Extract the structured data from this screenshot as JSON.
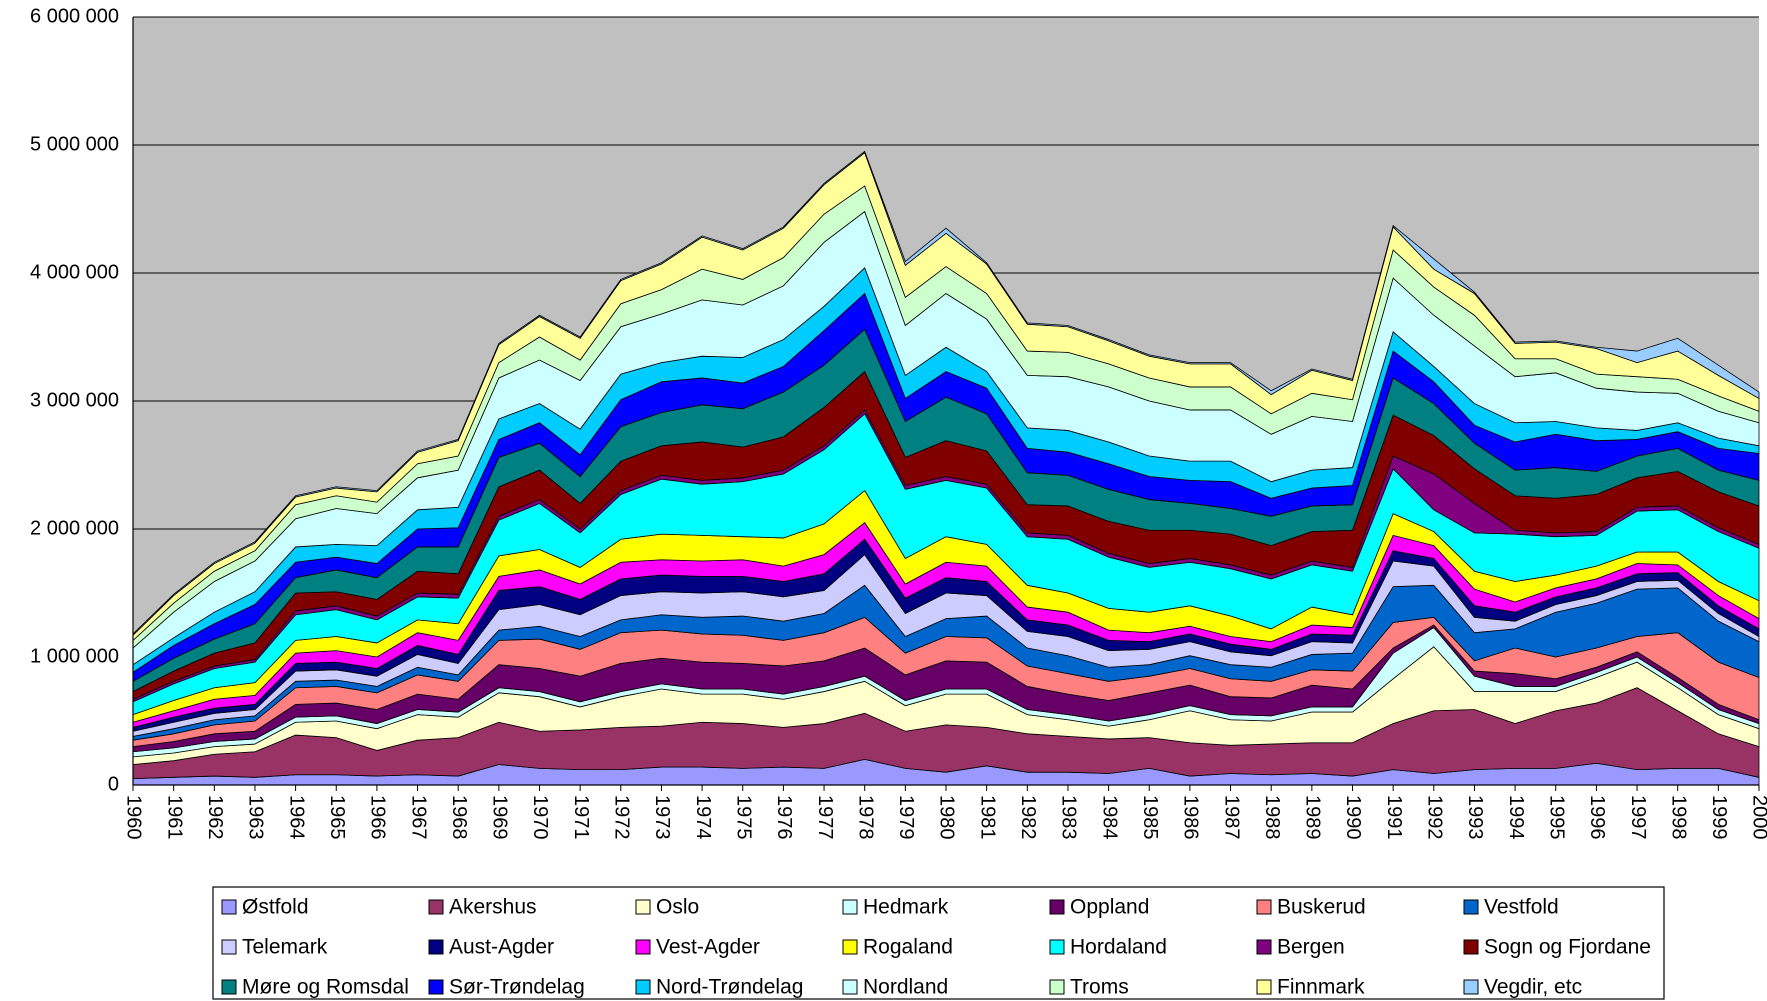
{
  "chart_data": {
    "type": "stacked-area",
    "categories": [
      1960,
      1961,
      1962,
      1963,
      1964,
      1965,
      1966,
      1967,
      1968,
      1969,
      1970,
      1971,
      1972,
      1973,
      1974,
      1975,
      1976,
      1977,
      1978,
      1979,
      1980,
      1981,
      1982,
      1983,
      1984,
      1985,
      1986,
      1987,
      1988,
      1989,
      1990,
      1991,
      1992,
      1993,
      1994,
      1995,
      1996,
      1997,
      1998,
      1999,
      2000
    ],
    "ylim": [
      0,
      6000000
    ],
    "yticks": [
      0,
      {
        "value": 1000000,
        "label": "1 000 000"
      },
      {
        "value": 2000000,
        "label": "2 000 000"
      },
      {
        "value": 3000000,
        "label": "3 000 000"
      },
      {
        "value": 4000000,
        "label": "4 000 000"
      },
      {
        "value": 5000000,
        "label": "5 000 000"
      },
      {
        "value": 6000000,
        "label": "6 000 000"
      }
    ],
    "grid": true,
    "legend": "bottom",
    "series": [
      {
        "name": "Østfold",
        "color": "#9999FF",
        "values": [
          50000,
          60000,
          70000,
          60000,
          80000,
          80000,
          70000,
          80000,
          70000,
          160000,
          130000,
          120000,
          120000,
          140000,
          140000,
          130000,
          140000,
          130000,
          200000,
          130000,
          100000,
          150000,
          100000,
          100000,
          90000,
          130000,
          70000,
          90000,
          80000,
          90000,
          70000,
          120000,
          90000,
          120000,
          130000,
          130000,
          170000,
          120000,
          130000,
          130000,
          60000
        ]
      },
      {
        "name": "Akershus",
        "color": "#993366",
        "values": [
          110000,
          130000,
          170000,
          200000,
          310000,
          290000,
          200000,
          270000,
          300000,
          330000,
          290000,
          310000,
          330000,
          320000,
          350000,
          350000,
          310000,
          350000,
          360000,
          290000,
          370000,
          300000,
          300000,
          280000,
          270000,
          240000,
          260000,
          220000,
          240000,
          240000,
          260000,
          360000,
          490000,
          470000,
          350000,
          450000,
          470000,
          640000,
          450000,
          270000,
          240000
        ]
      },
      {
        "name": "Oslo",
        "color": "#FFFFCC",
        "values": [
          60000,
          60000,
          60000,
          60000,
          100000,
          130000,
          170000,
          200000,
          160000,
          230000,
          270000,
          180000,
          240000,
          290000,
          220000,
          230000,
          220000,
          250000,
          250000,
          200000,
          240000,
          260000,
          150000,
          130000,
          100000,
          140000,
          250000,
          200000,
          180000,
          240000,
          240000,
          350000,
          500000,
          140000,
          250000,
          150000,
          200000,
          200000,
          180000,
          150000,
          140000
        ]
      },
      {
        "name": "Hedmark",
        "color": "#CCFFFF",
        "values": [
          40000,
          40000,
          40000,
          40000,
          40000,
          40000,
          40000,
          40000,
          40000,
          40000,
          40000,
          40000,
          40000,
          40000,
          40000,
          40000,
          40000,
          40000,
          40000,
          40000,
          40000,
          40000,
          40000,
          40000,
          40000,
          40000,
          40000,
          40000,
          40000,
          40000,
          40000,
          200000,
          150000,
          120000,
          40000,
          40000,
          40000,
          40000,
          40000,
          40000,
          40000
        ]
      },
      {
        "name": "Oppland",
        "color": "#660066",
        "values": [
          40000,
          50000,
          60000,
          60000,
          100000,
          100000,
          110000,
          120000,
          100000,
          180000,
          180000,
          200000,
          220000,
          200000,
          210000,
          200000,
          220000,
          200000,
          220000,
          200000,
          220000,
          210000,
          180000,
          160000,
          160000,
          170000,
          160000,
          140000,
          140000,
          170000,
          140000,
          40000,
          20000,
          40000,
          100000,
          60000,
          40000,
          40000,
          40000,
          40000,
          30000
        ]
      },
      {
        "name": "Buskerud",
        "color": "#FF8080",
        "values": [
          50000,
          60000,
          70000,
          80000,
          130000,
          130000,
          130000,
          150000,
          140000,
          190000,
          230000,
          210000,
          240000,
          220000,
          220000,
          220000,
          200000,
          220000,
          240000,
          170000,
          190000,
          190000,
          160000,
          160000,
          150000,
          130000,
          130000,
          140000,
          130000,
          120000,
          140000,
          200000,
          60000,
          80000,
          200000,
          170000,
          150000,
          120000,
          350000,
          330000,
          330000
        ]
      },
      {
        "name": "Vestfold",
        "color": "#0066CC",
        "values": [
          30000,
          40000,
          40000,
          40000,
          50000,
          50000,
          50000,
          60000,
          50000,
          80000,
          100000,
          100000,
          100000,
          120000,
          130000,
          150000,
          150000,
          150000,
          250000,
          130000,
          140000,
          170000,
          140000,
          140000,
          110000,
          90000,
          100000,
          110000,
          110000,
          120000,
          140000,
          280000,
          250000,
          220000,
          150000,
          350000,
          350000,
          370000,
          350000,
          320000,
          280000
        ]
      },
      {
        "name": "Telemark",
        "color": "#CCCCFF",
        "values": [
          40000,
          50000,
          50000,
          50000,
          80000,
          80000,
          80000,
          100000,
          90000,
          160000,
          170000,
          170000,
          190000,
          180000,
          190000,
          190000,
          190000,
          180000,
          240000,
          180000,
          200000,
          160000,
          130000,
          150000,
          130000,
          120000,
          110000,
          100000,
          90000,
          100000,
          80000,
          200000,
          150000,
          120000,
          60000,
          60000,
          60000,
          60000,
          60000,
          60000,
          40000
        ]
      },
      {
        "name": "Aust-Agder",
        "color": "#000080",
        "values": [
          30000,
          40000,
          40000,
          40000,
          60000,
          60000,
          60000,
          70000,
          70000,
          150000,
          140000,
          120000,
          130000,
          130000,
          130000,
          120000,
          120000,
          130000,
          120000,
          120000,
          120000,
          110000,
          90000,
          90000,
          80000,
          60000,
          60000,
          60000,
          50000,
          60000,
          60000,
          80000,
          60000,
          90000,
          70000,
          60000,
          60000,
          60000,
          60000,
          60000,
          60000
        ]
      },
      {
        "name": "Vest-Agder",
        "color": "#FF00FF",
        "values": [
          40000,
          50000,
          70000,
          70000,
          80000,
          90000,
          90000,
          100000,
          110000,
          110000,
          130000,
          120000,
          130000,
          120000,
          120000,
          130000,
          120000,
          150000,
          130000,
          110000,
          120000,
          120000,
          100000,
          100000,
          80000,
          70000,
          60000,
          60000,
          60000,
          70000,
          60000,
          120000,
          100000,
          130000,
          80000,
          70000,
          70000,
          80000,
          60000,
          80000,
          80000
        ]
      },
      {
        "name": "Rogaland",
        "color": "#FFFF00",
        "values": [
          60000,
          80000,
          90000,
          100000,
          100000,
          110000,
          110000,
          100000,
          130000,
          160000,
          160000,
          130000,
          180000,
          200000,
          200000,
          180000,
          220000,
          240000,
          250000,
          200000,
          200000,
          170000,
          170000,
          150000,
          170000,
          160000,
          160000,
          160000,
          100000,
          140000,
          100000,
          170000,
          110000,
          140000,
          160000,
          100000,
          100000,
          90000,
          100000,
          110000,
          140000
        ]
      },
      {
        "name": "Hordaland",
        "color": "#00FFFF",
        "values": [
          100000,
          130000,
          150000,
          160000,
          200000,
          210000,
          180000,
          180000,
          200000,
          280000,
          360000,
          270000,
          350000,
          430000,
          400000,
          430000,
          500000,
          580000,
          600000,
          540000,
          440000,
          440000,
          380000,
          420000,
          400000,
          350000,
          340000,
          370000,
          390000,
          330000,
          340000,
          350000,
          170000,
          300000,
          370000,
          300000,
          240000,
          320000,
          330000,
          390000,
          410000
        ]
      },
      {
        "name": "Bergen",
        "color": "#800080",
        "values": [
          20000,
          20000,
          20000,
          20000,
          30000,
          30000,
          30000,
          30000,
          30000,
          30000,
          30000,
          30000,
          30000,
          30000,
          30000,
          30000,
          30000,
          30000,
          30000,
          30000,
          30000,
          30000,
          30000,
          30000,
          30000,
          30000,
          30000,
          30000,
          30000,
          30000,
          30000,
          100000,
          280000,
          230000,
          30000,
          30000,
          30000,
          30000,
          30000,
          30000,
          30000
        ]
      },
      {
        "name": "Sogn og Fjordane",
        "color": "#800000",
        "values": [
          60000,
          80000,
          100000,
          130000,
          140000,
          110000,
          130000,
          170000,
          160000,
          230000,
          230000,
          200000,
          230000,
          230000,
          300000,
          240000,
          260000,
          300000,
          300000,
          220000,
          280000,
          260000,
          220000,
          230000,
          250000,
          260000,
          220000,
          240000,
          230000,
          230000,
          290000,
          320000,
          300000,
          270000,
          270000,
          270000,
          290000,
          230000,
          270000,
          280000,
          300000
        ]
      },
      {
        "name": "Møre og Romsdal",
        "color": "#008080",
        "values": [
          80000,
          100000,
          110000,
          150000,
          120000,
          170000,
          170000,
          190000,
          210000,
          230000,
          210000,
          210000,
          270000,
          260000,
          290000,
          300000,
          350000,
          330000,
          330000,
          280000,
          340000,
          290000,
          250000,
          240000,
          250000,
          240000,
          210000,
          200000,
          230000,
          200000,
          200000,
          290000,
          250000,
          200000,
          200000,
          240000,
          180000,
          170000,
          180000,
          170000,
          200000
        ]
      },
      {
        "name": "Sør-Trøndelag",
        "color": "#0000FF",
        "values": [
          70000,
          100000,
          120000,
          150000,
          120000,
          100000,
          110000,
          140000,
          150000,
          140000,
          160000,
          170000,
          210000,
          240000,
          210000,
          200000,
          200000,
          270000,
          280000,
          180000,
          200000,
          200000,
          190000,
          180000,
          200000,
          180000,
          180000,
          210000,
          140000,
          140000,
          150000,
          210000,
          170000,
          140000,
          220000,
          260000,
          240000,
          130000,
          130000,
          170000,
          210000
        ]
      },
      {
        "name": "Nord-Trøndelag",
        "color": "#00CCFF",
        "values": [
          60000,
          60000,
          90000,
          100000,
          120000,
          100000,
          140000,
          150000,
          160000,
          160000,
          150000,
          200000,
          200000,
          150000,
          170000,
          200000,
          210000,
          190000,
          200000,
          180000,
          190000,
          130000,
          160000,
          170000,
          170000,
          160000,
          150000,
          160000,
          130000,
          140000,
          140000,
          150000,
          120000,
          170000,
          150000,
          100000,
          100000,
          70000,
          70000,
          80000,
          60000
        ]
      },
      {
        "name": "Nordland",
        "color": "#CCFFFF",
        "values": [
          130000,
          200000,
          240000,
          240000,
          220000,
          280000,
          250000,
          250000,
          290000,
          320000,
          340000,
          380000,
          370000,
          380000,
          440000,
          410000,
          420000,
          500000,
          440000,
          390000,
          420000,
          410000,
          410000,
          420000,
          430000,
          430000,
          400000,
          400000,
          370000,
          420000,
          360000,
          420000,
          400000,
          450000,
          360000,
          380000,
          310000,
          300000,
          230000,
          210000,
          180000
        ]
      },
      {
        "name": "Troms",
        "color": "#CCFFCC",
        "values": [
          60000,
          70000,
          80000,
          80000,
          110000,
          100000,
          90000,
          110000,
          110000,
          120000,
          180000,
          160000,
          180000,
          190000,
          240000,
          200000,
          220000,
          220000,
          200000,
          220000,
          210000,
          200000,
          190000,
          190000,
          180000,
          180000,
          180000,
          180000,
          160000,
          180000,
          170000,
          220000,
          220000,
          240000,
          140000,
          110000,
          110000,
          120000,
          110000,
          120000,
          90000
        ]
      },
      {
        "name": "Finnmark",
        "color": "#FFFF99",
        "values": [
          40000,
          60000,
          60000,
          60000,
          60000,
          60000,
          80000,
          90000,
          120000,
          140000,
          160000,
          170000,
          180000,
          200000,
          250000,
          230000,
          230000,
          230000,
          260000,
          250000,
          260000,
          230000,
          210000,
          200000,
          180000,
          170000,
          180000,
          180000,
          150000,
          180000,
          150000,
          180000,
          140000,
          170000,
          120000,
          130000,
          200000,
          110000,
          220000,
          160000,
          100000
        ]
      },
      {
        "name": "Vegdir, etc",
        "color": "#99CCFF",
        "values": [
          10000,
          10000,
          10000,
          10000,
          10000,
          10000,
          10000,
          10000,
          10000,
          10000,
          10000,
          10000,
          10000,
          10000,
          10000,
          10000,
          10000,
          10000,
          10000,
          30000,
          40000,
          10000,
          10000,
          10000,
          10000,
          10000,
          10000,
          10000,
          30000,
          10000,
          10000,
          10000,
          80000,
          10000,
          10000,
          10000,
          10000,
          90000,
          100000,
          80000,
          50000
        ]
      }
    ]
  }
}
